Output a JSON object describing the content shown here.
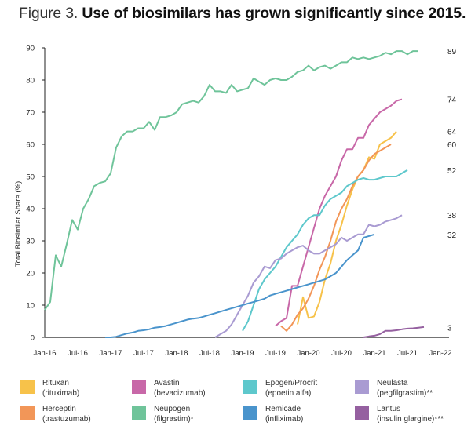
{
  "title": {
    "prefix": "Figure 3. ",
    "main": "Use of biosimilars has grown significantly since 2015."
  },
  "chart_data": {
    "type": "line",
    "title": "Use of biosimilars has grown significantly since 2015.",
    "xlabel": "",
    "ylabel": "Total Biosimilar Share (%)",
    "ylim": [
      0,
      90
    ],
    "yticks": [
      "0",
      "10",
      "20",
      "30",
      "40",
      "50",
      "60",
      "70",
      "80",
      "90"
    ],
    "xticks": [
      "Jan-16",
      "Jul-16",
      "Jan-17",
      "Jul-17",
      "Jan-18",
      "Jul-18",
      "Jan-19",
      "Jul-19",
      "Jan-20",
      "Jul-20",
      "Jan-21",
      "Jul-21",
      "Jan-22"
    ],
    "x_unit": "months since Jan-16",
    "xlim": [
      0,
      72
    ],
    "grid": false,
    "legend_position": "bottom",
    "series": [
      {
        "name": "Neupogen",
        "subtitle": "(filgrastim)*",
        "color": "#6fc49a",
        "end_label": "89",
        "start_month": 0,
        "values": [
          8.5,
          11,
          25.5,
          22,
          29,
          36.5,
          33.5,
          40,
          43,
          47,
          48,
          48.5,
          51,
          59,
          62.5,
          64,
          64,
          65,
          65,
          67,
          64.5,
          68.5,
          68.5,
          69,
          70,
          72.5,
          73,
          73.5,
          73,
          75,
          78.5,
          76.5,
          76.5,
          76,
          78.5,
          76.5,
          77,
          77.5,
          80.5,
          79.5,
          78.5,
          80,
          80.5,
          80,
          80,
          81,
          82.5,
          83,
          84.5,
          83,
          84,
          84.5,
          83.5,
          84.5,
          85.5,
          85.5,
          87,
          86.5,
          87,
          86.5,
          87,
          87.5,
          88.5,
          88,
          89,
          89,
          88,
          89,
          89
        ]
      },
      {
        "name": "Avastin",
        "subtitle": "(bevacizumab)",
        "color": "#c868a8",
        "end_label": "74",
        "start_month": 42,
        "values": [
          3.5,
          5,
          6,
          16,
          16,
          22,
          28,
          34,
          40,
          44,
          47,
          50,
          55,
          58.5,
          58.5,
          62,
          62,
          66,
          68,
          70,
          71,
          72,
          73.5,
          74
        ]
      },
      {
        "name": "Rituxan",
        "subtitle": "(rituximab)",
        "color": "#f7c24a",
        "end_label": "64",
        "start_month": 46,
        "values": [
          4,
          12.5,
          6,
          6.5,
          11,
          18,
          23,
          30,
          35,
          41,
          46,
          50,
          52,
          56,
          55.5,
          60,
          61,
          62,
          64
        ]
      },
      {
        "name": "Herceptin",
        "subtitle": "(trastuzumab)",
        "color": "#f29658",
        "end_label": "60",
        "start_month": 43,
        "values": [
          3.5,
          2,
          4,
          7,
          9,
          12,
          16,
          21,
          25,
          30,
          36,
          40,
          43,
          47,
          50,
          52,
          55,
          57,
          58,
          59,
          60
        ]
      },
      {
        "name": "Epogen/Procrit",
        "subtitle": "(epoetin alfa)",
        "color": "#5ec8cc",
        "end_label": "52",
        "start_month": 36,
        "values": [
          2,
          5,
          10,
          15,
          18,
          20,
          22,
          25,
          28,
          30,
          32,
          35,
          37,
          38,
          38,
          41,
          43,
          44,
          45,
          47,
          48,
          49,
          49.5,
          49,
          49,
          49.5,
          50,
          50,
          50,
          51,
          52
        ]
      },
      {
        "name": "Neulasta",
        "subtitle": "(pegfilgrastim)**",
        "color": "#a99bd2",
        "end_label": "38",
        "start_month": 31,
        "values": [
          0,
          1,
          2,
          4,
          7,
          10,
          13,
          17,
          19,
          22,
          21.5,
          24,
          24.5,
          26,
          27,
          28,
          28.5,
          27,
          26,
          26,
          27,
          28,
          29,
          31,
          30,
          31,
          32,
          32,
          35,
          34.5,
          35,
          36,
          36.5,
          37,
          38
        ]
      },
      {
        "name": "Remicade",
        "subtitle": "(infliximab)",
        "color": "#4a94cc",
        "end_label": "32",
        "start_month": 11,
        "values": [
          0,
          0,
          0.2,
          0.7,
          1.2,
          1.5,
          2,
          2.2,
          2.5,
          3,
          3.2,
          3.5,
          4,
          4.5,
          5,
          5.5,
          5.8,
          6,
          6.5,
          7,
          7.5,
          8,
          8.5,
          9,
          9.5,
          10,
          10.5,
          11,
          11.5,
          12,
          13,
          13.5,
          14,
          14.5,
          15,
          15.5,
          16,
          16.5,
          17,
          17.5,
          18,
          19,
          20,
          22,
          24,
          25.5,
          27,
          31,
          31.5,
          32
        ]
      },
      {
        "name": "Lantus",
        "subtitle": "(insulin glargine)***",
        "color": "#9560a0",
        "end_label": "3",
        "start_month": 58,
        "values": [
          0,
          0.3,
          0.5,
          1,
          2,
          2,
          2.2,
          2.5,
          2.7,
          2.8,
          3,
          3.2
        ]
      }
    ]
  },
  "legend": [
    {
      "name": "Rituxan",
      "subtitle": "(rituximab)",
      "color": "#f7c24a"
    },
    {
      "name": "Avastin",
      "subtitle": "(bevacizumab)",
      "color": "#c868a8"
    },
    {
      "name": "Epogen/Procrit",
      "subtitle": "(epoetin alfa)",
      "color": "#5ec8cc"
    },
    {
      "name": "Neulasta",
      "subtitle": "(pegfilgrastim)**",
      "color": "#a99bd2"
    },
    {
      "name": "Herceptin",
      "subtitle": "(trastuzumab)",
      "color": "#f29658"
    },
    {
      "name": "Neupogen",
      "subtitle": "(filgrastim)*",
      "color": "#6fc49a"
    },
    {
      "name": "Remicade",
      "subtitle": "(infliximab)",
      "color": "#4a94cc"
    },
    {
      "name": "Lantus",
      "subtitle": "(insulin glargine)***",
      "color": "#9560a0"
    }
  ]
}
